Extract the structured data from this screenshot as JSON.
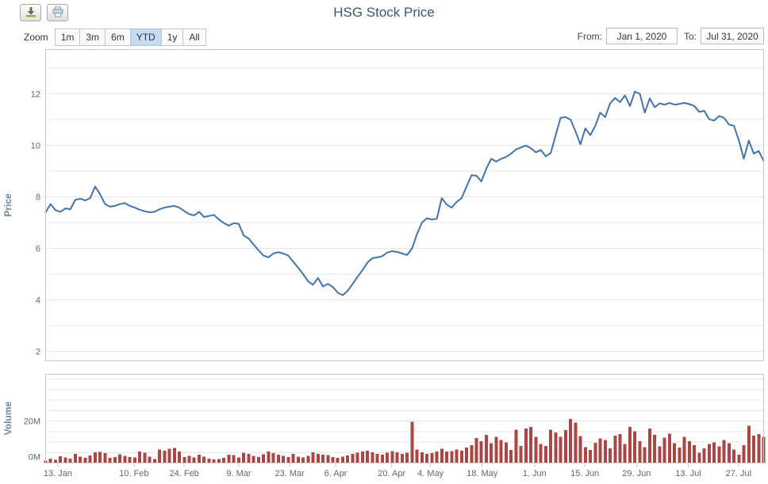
{
  "header": {
    "title": "HSG Stock Price"
  },
  "toolbar": {
    "icons": [
      "download-icon",
      "print-icon"
    ]
  },
  "range_selector": {
    "zoom_label": "Zoom",
    "buttons": [
      {
        "label": "1m"
      },
      {
        "label": "3m"
      },
      {
        "label": "6m"
      },
      {
        "label": "YTD"
      },
      {
        "label": "1y"
      },
      {
        "label": "All"
      }
    ],
    "selected": "YTD",
    "from_label": "From:",
    "from_value": "Jan 1, 2020",
    "to_label": "To:",
    "to_value": "Jul 31, 2020"
  },
  "colors": {
    "price_line": "#4572A7",
    "volume_bar": "#AA4643",
    "grid": "#E7E7E7",
    "pane_border": "#C9C9C9",
    "axis_label": "#666666",
    "axis_title": "#6D869F",
    "selected_range_bg": "#C6DCF3"
  },
  "chart_data": [
    {
      "type": "line",
      "title": "HSG Stock Price",
      "ylabel": "Price",
      "ylim": [
        1.65,
        13.75
      ],
      "yticks": [
        2,
        4,
        6,
        8,
        10,
        12
      ],
      "grid_step": 1,
      "legend": "none",
      "color": "#4572A7",
      "shared_x_axis": true,
      "x_ticks": [
        {
          "label": "13. Jan",
          "pos": 0.017
        },
        {
          "label": "10. Feb",
          "pos": 0.123
        },
        {
          "label": "24. Feb",
          "pos": 0.193
        },
        {
          "label": "9. Mar",
          "pos": 0.269
        },
        {
          "label": "23. Mar",
          "pos": 0.34
        },
        {
          "label": "6. Apr",
          "pos": 0.404
        },
        {
          "label": "20. Apr",
          "pos": 0.482
        },
        {
          "label": "4. May",
          "pos": 0.536
        },
        {
          "label": "18. May",
          "pos": 0.608
        },
        {
          "label": "1. Jun",
          "pos": 0.681
        },
        {
          "label": "15. Jun",
          "pos": 0.751
        },
        {
          "label": "29. Jun",
          "pos": 0.823
        },
        {
          "label": "13. Jul",
          "pos": 0.895
        },
        {
          "label": "27. Jul",
          "pos": 0.965
        }
      ],
      "series": [
        {
          "name": "HSG",
          "values": [
            7.4,
            7.72,
            7.48,
            7.42,
            7.55,
            7.52,
            7.88,
            7.93,
            7.86,
            7.95,
            8.4,
            8.1,
            7.72,
            7.62,
            7.65,
            7.72,
            7.76,
            7.65,
            7.58,
            7.5,
            7.44,
            7.4,
            7.42,
            7.52,
            7.58,
            7.62,
            7.65,
            7.58,
            7.45,
            7.33,
            7.28,
            7.42,
            7.22,
            7.26,
            7.3,
            7.12,
            6.98,
            6.88,
            6.98,
            6.95,
            6.5,
            6.38,
            6.15,
            5.92,
            5.72,
            5.65,
            5.8,
            5.85,
            5.8,
            5.72,
            5.48,
            5.25,
            5.0,
            4.72,
            4.58,
            4.85,
            4.52,
            4.62,
            4.5,
            4.28,
            4.18,
            4.35,
            4.62,
            4.9,
            5.15,
            5.45,
            5.62,
            5.65,
            5.7,
            5.84,
            5.89,
            5.86,
            5.8,
            5.74,
            6.0,
            6.55,
            7.0,
            7.17,
            7.12,
            7.15,
            7.95,
            7.7,
            7.58,
            7.8,
            7.95,
            8.4,
            8.84,
            8.82,
            8.6,
            9.1,
            9.48,
            9.37,
            9.48,
            9.55,
            9.68,
            9.84,
            9.92,
            9.99,
            9.89,
            9.73,
            9.82,
            9.58,
            9.7,
            10.4,
            11.07,
            11.1,
            11.0,
            10.55,
            10.04,
            10.66,
            10.4,
            10.76,
            11.27,
            11.1,
            11.63,
            11.84,
            11.68,
            11.94,
            11.53,
            12.09,
            12.0,
            11.27,
            11.82,
            11.48,
            11.63,
            11.58,
            11.65,
            11.58,
            11.61,
            11.65,
            11.6,
            11.53,
            11.3,
            11.34,
            11.02,
            10.96,
            11.14,
            11.07,
            10.81,
            10.76,
            10.19,
            9.48,
            10.19,
            9.68,
            9.78,
            9.4
          ]
        }
      ]
    },
    {
      "type": "bar",
      "ylabel": "Volume",
      "unit": "M",
      "ylim": [
        0,
        42.3
      ],
      "yticks": [
        {
          "v": 0,
          "label": "0M"
        },
        {
          "v": 20,
          "label": "20M"
        }
      ],
      "grid_step": 5,
      "color": "#AA4643",
      "values": [
        1.2,
        2.0,
        1.6,
        3.2,
        2.6,
        2.1,
        4.3,
        3.0,
        2.4,
        3.6,
        5.1,
        5.3,
        4.7,
        2.4,
        2.9,
        4.1,
        3.4,
        2.9,
        2.7,
        5.4,
        4.9,
        3.1,
        1.9,
        6.4,
        5.9,
        6.7,
        7.2,
        5.4,
        2.9,
        3.4,
        2.6,
        3.9,
        3.1,
        2.1,
        1.7,
        1.9,
        2.4,
        3.9,
        3.7,
        2.7,
        4.9,
        4.4,
        3.4,
        2.9,
        4.1,
        5.4,
        4.7,
        3.9,
        3.4,
        2.9,
        4.4,
        3.1,
        2.7,
        3.4,
        5.1,
        4.4,
        3.9,
        3.7,
        2.9,
        2.4,
        3.1,
        3.6,
        4.3,
        4.9,
        5.4,
        5.9,
        5.1,
        4.4,
        3.9,
        4.9,
        5.7,
        5.1,
        4.4,
        4.9,
        19.7,
        6.4,
        5.1,
        4.4,
        4.7,
        5.4,
        6.7,
        5.4,
        5.7,
        6.4,
        5.9,
        7.4,
        8.4,
        11.9,
        10.4,
        13.4,
        9.4,
        12.4,
        10.9,
        9.9,
        6.2,
        15.8,
        8.2,
        16.5,
        17.2,
        12.4,
        9.0,
        8.2,
        15.8,
        14.5,
        12.4,
        15.6,
        21.0,
        19.3,
        12.8,
        7.6,
        6.2,
        9.6,
        11.7,
        11.0,
        6.9,
        13.0,
        13.8,
        9.0,
        17.2,
        15.1,
        10.3,
        7.6,
        16.5,
        13.4,
        8.0,
        12.0,
        14.0,
        9.4,
        7.4,
        12.4,
        10.4,
        8.4,
        5.0,
        7.0,
        9.0,
        9.9,
        8.0,
        11.0,
        9.4,
        6.4,
        4.0,
        8.4,
        17.8,
        13.0,
        13.8,
        12.4
      ]
    }
  ]
}
